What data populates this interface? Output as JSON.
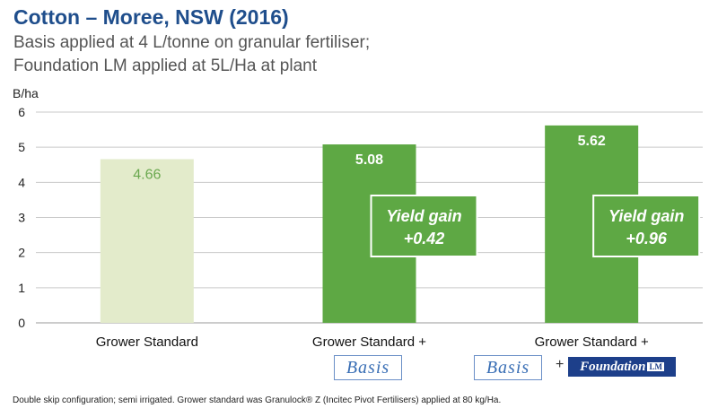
{
  "title": "Cotton – Moree, NSW (2016)",
  "subtitle_line1": "Basis applied at 4 L/tonne on granular fertiliser;",
  "subtitle_line2": "Foundation LM applied at 5L/Ha at plant",
  "footnote": "Double skip configuration; semi irrigated. Grower standard was Granulock® Z (Incitec Pivot Fertilisers) applied at 80 kg/Ha.",
  "logos": {
    "basis": "Basis",
    "foundation": "Foundation",
    "foundation_suffix": "LM",
    "plus": "+"
  },
  "colors": {
    "control_bar": "#e3ebcb",
    "treatment_bar": "#5ea844",
    "control_label": "#6aa84f",
    "grid": "#c9c9c9",
    "title": "#1f4e8c"
  },
  "chart_data": {
    "type": "bar",
    "ylabel": "B/ha",
    "ylim": [
      0,
      6
    ],
    "yticks": [
      0,
      1,
      2,
      3,
      4,
      5,
      6
    ],
    "grid": true,
    "categories": [
      "Grower Standard",
      "Grower Standard +",
      "Grower Standard +"
    ],
    "values": [
      4.66,
      5.08,
      5.62
    ],
    "value_labels": [
      "4.66",
      "5.08",
      "5.62"
    ],
    "annotations": [
      null,
      {
        "line1": "Yield gain",
        "line2": "+0.42"
      },
      {
        "line1": "Yield gain",
        "line2": "+0.96"
      }
    ]
  }
}
